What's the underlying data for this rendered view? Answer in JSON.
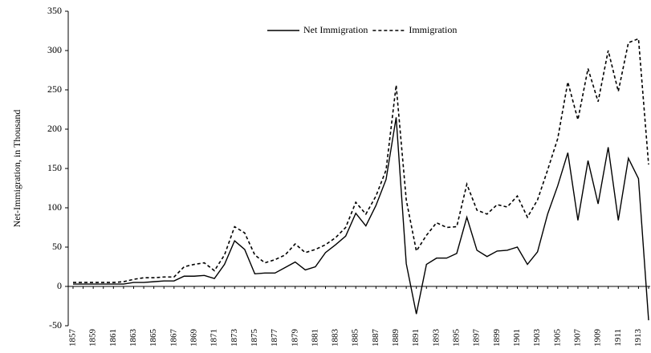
{
  "chart_data": {
    "type": "line",
    "y_label": "Net-Immigration, in Thousand",
    "categories": [
      "1857",
      null,
      "1859",
      null,
      "1861",
      null,
      "1863",
      null,
      "1865",
      null,
      "1867",
      null,
      "1869",
      null,
      "1871",
      null,
      "1873",
      null,
      "1875",
      null,
      "1877",
      null,
      "1879",
      null,
      "1881",
      null,
      "1883",
      null,
      "1885",
      null,
      "1887",
      null,
      "1889",
      null,
      "1891",
      null,
      "1893",
      null,
      "1895",
      null,
      "1897",
      null,
      "1899",
      null,
      "1901",
      null,
      "1903",
      null,
      "1905",
      null,
      "1907",
      null,
      "1909",
      null,
      "1911",
      null,
      "1913",
      null
    ],
    "series": [
      {
        "name": "Net Immigration",
        "color": "#000000",
        "dash": false,
        "values": [
          3,
          3,
          3,
          3,
          3,
          3,
          5,
          5,
          6,
          7,
          7,
          13,
          13,
          14,
          10,
          28,
          58,
          47,
          16,
          17,
          17,
          24,
          31,
          21,
          25,
          43,
          53,
          64,
          93,
          77,
          103,
          136,
          215,
          29,
          -35,
          28,
          36,
          36,
          42,
          88,
          46,
          38,
          45,
          46,
          50,
          28,
          44,
          92,
          128,
          170,
          84,
          160,
          105,
          177,
          84,
          163,
          137,
          -43
        ]
      },
      {
        "name": "Immigration",
        "color": "#000000",
        "dash": true,
        "values": [
          5,
          5,
          5,
          5,
          5,
          6,
          9,
          11,
          11,
          12,
          12,
          25,
          28,
          30,
          20,
          40,
          76,
          68,
          40,
          30,
          34,
          40,
          54,
          43,
          47,
          53,
          62,
          75,
          107,
          92,
          115,
          148,
          256,
          110,
          45,
          65,
          81,
          75,
          76,
          130,
          97,
          92,
          104,
          101,
          115,
          88,
          110,
          148,
          188,
          260,
          212,
          277,
          235,
          300,
          248,
          310,
          315,
          155
        ]
      }
    ],
    "ylim": [
      -50,
      350
    ],
    "yticks": [
      -50,
      0,
      50,
      100,
      150,
      200,
      250,
      300,
      350
    ],
    "grid": false,
    "legend": "top"
  }
}
